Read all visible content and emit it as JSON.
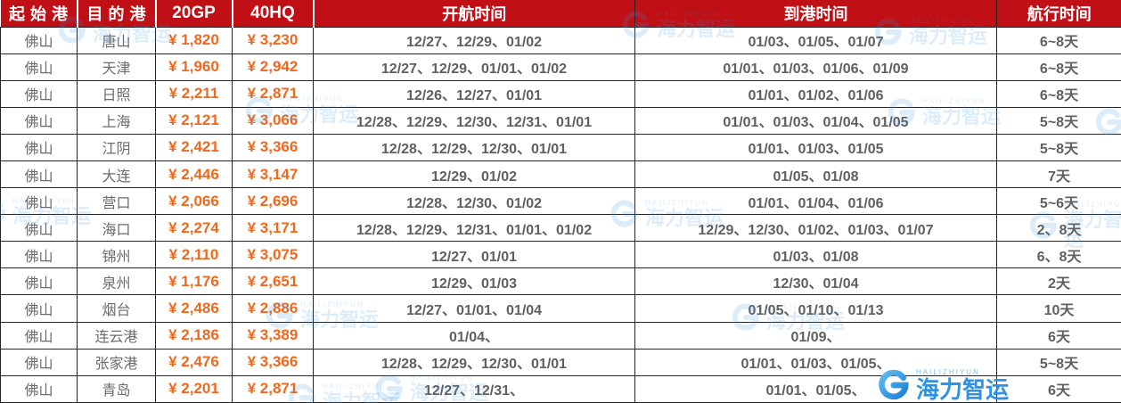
{
  "chart_data": {
    "type": "table",
    "title": "",
    "columns": [
      "起始港",
      "目的港",
      "20GP",
      "40HQ",
      "开航时间",
      "到港时间",
      "航行时间"
    ],
    "rows": [
      [
        "佛山",
        "唐山",
        "¥ 1,820",
        "¥ 3,230",
        "12/27、12/29、01/02",
        "01/03、01/05、01/07",
        "6~8天"
      ],
      [
        "佛山",
        "天津",
        "¥ 1,960",
        "¥ 2,942",
        "12/27、12/29、01/01、01/02",
        "01/01、01/03、01/06、01/09",
        "6~8天"
      ],
      [
        "佛山",
        "日照",
        "¥ 2,211",
        "¥ 2,871",
        "12/26、12/27、01/01",
        "01/01、01/02、01/06",
        "6~8天"
      ],
      [
        "佛山",
        "上海",
        "¥ 2,121",
        "¥ 3,066",
        "12/28、12/29、12/30、12/31、01/01",
        "01/01、01/03、01/04、01/05",
        "5~8天"
      ],
      [
        "佛山",
        "江阴",
        "¥ 2,421",
        "¥ 3,366",
        "12/28、12/29、12/30、01/01",
        "01/01、01/03、01/05",
        "5~8天"
      ],
      [
        "佛山",
        "大连",
        "¥ 2,446",
        "¥ 3,147",
        "12/29、01/02",
        "01/05、01/08",
        "7天"
      ],
      [
        "佛山",
        "营口",
        "¥ 2,066",
        "¥ 2,696",
        "12/28、12/30、01/02",
        "01/01、01/04、01/06",
        "5~6天"
      ],
      [
        "佛山",
        "海口",
        "¥ 2,274",
        "¥ 3,171",
        "12/28、12/29、12/31、01/01、01/02",
        "12/29、12/30、01/02、01/03、01/07",
        "2、8天"
      ],
      [
        "佛山",
        "锦州",
        "¥ 2,110",
        "¥ 3,075",
        "12/27、01/01",
        "01/03、01/08",
        "6、8天"
      ],
      [
        "佛山",
        "泉州",
        "¥ 1,176",
        "¥ 2,651",
        "12/29、01/03",
        "12/30、01/04",
        "2天"
      ],
      [
        "佛山",
        "烟台",
        "¥ 2,486",
        "¥ 2,886",
        "12/27、01/01、01/04",
        "01/05、01/10、01/13",
        "10天"
      ],
      [
        "佛山",
        "连云港",
        "¥ 2,186",
        "¥ 3,389",
        "01/04、",
        "01/09、",
        "6天"
      ],
      [
        "佛山",
        "张家港",
        "¥ 2,476",
        "¥ 3,366",
        "12/28、12/29、12/30、01/01",
        "01/01、01/03、01/05、",
        "5~8天"
      ],
      [
        "佛山",
        "青岛",
        "¥ 2,201",
        "¥ 2,871",
        "12/27、12/31、",
        "01/01、01/05、",
        "6天"
      ]
    ]
  },
  "watermark": {
    "brand_cn": "海力智运",
    "brand_en": "HAILIZHIYUN"
  },
  "colors": {
    "header_bg": "#C01015",
    "header_text": "#FFFFFF",
    "price_text": "#F0681C",
    "body_text": "#606060",
    "watermark_blue": "#2E8FE0",
    "logo_blue": "#2D93E2"
  }
}
